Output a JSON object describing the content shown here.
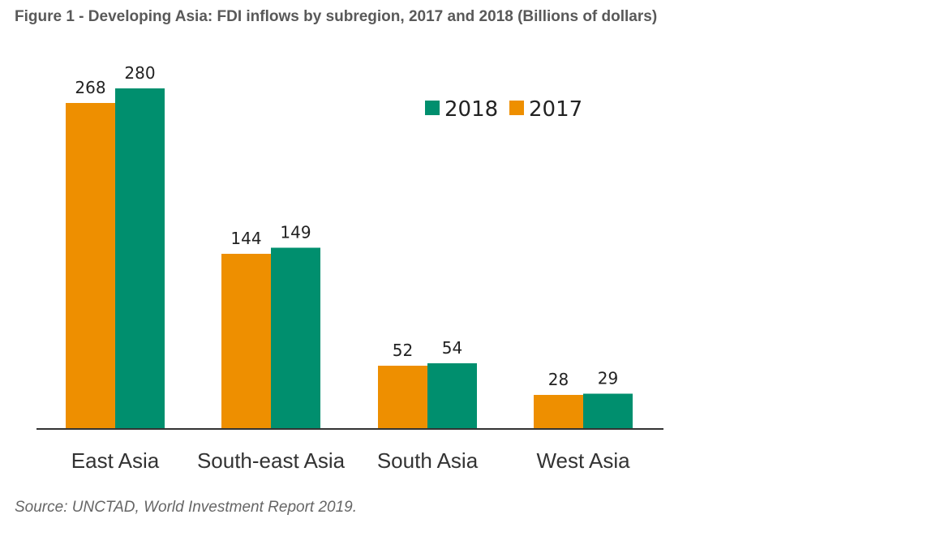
{
  "figure": {
    "title": "Figure 1 - Developing Asia: FDI inflows by subregion, 2017 and 2018 (Billions of dollars)",
    "source": "Source: UNCTAD, World Investment Report 2019."
  },
  "chart_data": {
    "type": "bar",
    "title": "Figure 1 - Developing Asia: FDI inflows by subregion, 2017 and 2018 (Billions of dollars)",
    "xlabel": "",
    "ylabel": "",
    "ylim": [
      0,
      300
    ],
    "grid": false,
    "legend_position": "top-right",
    "categories": [
      "East Asia",
      "South-east Asia",
      "South Asia",
      "West Asia"
    ],
    "series": [
      {
        "name": "2017",
        "color": "#EE8F00",
        "values": [
          268,
          144,
          52,
          28
        ]
      },
      {
        "name": "2018",
        "color": "#008F6E",
        "values": [
          280,
          149,
          54,
          29
        ]
      }
    ],
    "legend_order": [
      "2018",
      "2017"
    ]
  }
}
